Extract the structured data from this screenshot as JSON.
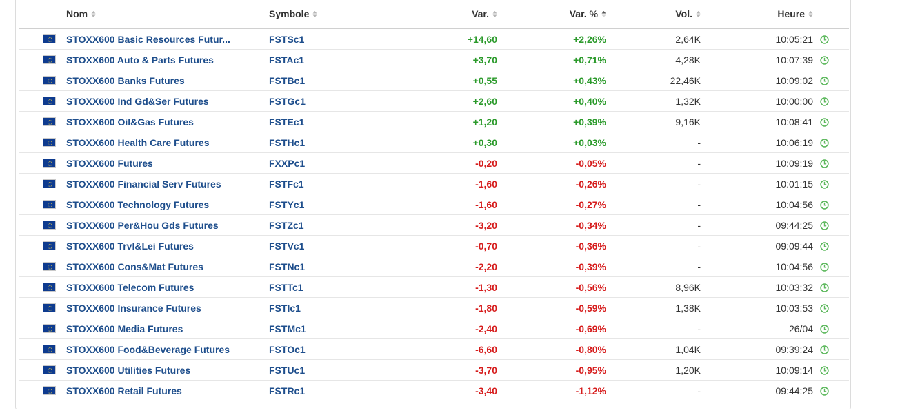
{
  "columns": {
    "name": "Nom",
    "symbol": "Symbole",
    "var": "Var.",
    "var_pct": "Var. %",
    "vol": "Vol.",
    "time": "Heure"
  },
  "colors": {
    "positive": "#2b9a2b",
    "negative": "#d61c1c",
    "link": "#1e4e8c",
    "clock": "#5cb85c"
  },
  "rows": [
    {
      "flag": "eu-flag-icon",
      "name": "STOXX600 Basic Resources Futur...",
      "symbol": "FSTSc1",
      "var": "+14,60",
      "var_pct": "+2,26%",
      "vol": "2,64K",
      "time": "10:05:21",
      "dir": "pos"
    },
    {
      "flag": "eu-flag-icon",
      "name": "STOXX600 Auto & Parts Futures",
      "symbol": "FSTAc1",
      "var": "+3,70",
      "var_pct": "+0,71%",
      "vol": "4,28K",
      "time": "10:07:39",
      "dir": "pos"
    },
    {
      "flag": "eu-flag-icon",
      "name": "STOXX600 Banks Futures",
      "symbol": "FSTBc1",
      "var": "+0,55",
      "var_pct": "+0,43%",
      "vol": "22,46K",
      "time": "10:09:02",
      "dir": "pos"
    },
    {
      "flag": "eu-flag-icon",
      "name": "STOXX600 Ind Gd&Ser Futures",
      "symbol": "FSTGc1",
      "var": "+2,60",
      "var_pct": "+0,40%",
      "vol": "1,32K",
      "time": "10:00:00",
      "dir": "pos"
    },
    {
      "flag": "eu-flag-icon",
      "name": "STOXX600 Oil&Gas Futures",
      "symbol": "FSTEc1",
      "var": "+1,20",
      "var_pct": "+0,39%",
      "vol": "9,16K",
      "time": "10:08:41",
      "dir": "pos"
    },
    {
      "flag": "eu-flag-icon",
      "name": "STOXX600 Health Care Futures",
      "symbol": "FSTHc1",
      "var": "+0,30",
      "var_pct": "+0,03%",
      "vol": "-",
      "time": "10:06:19",
      "dir": "pos"
    },
    {
      "flag": "eu-flag-icon",
      "name": "STOXX600 Futures",
      "symbol": "FXXPc1",
      "var": "-0,20",
      "var_pct": "-0,05%",
      "vol": "-",
      "time": "10:09:19",
      "dir": "neg"
    },
    {
      "flag": "eu-flag-icon",
      "name": "STOXX600 Financial Serv Futures",
      "symbol": "FSTFc1",
      "var": "-1,60",
      "var_pct": "-0,26%",
      "vol": "-",
      "time": "10:01:15",
      "dir": "neg"
    },
    {
      "flag": "eu-flag-icon",
      "name": "STOXX600 Technology Futures",
      "symbol": "FSTYc1",
      "var": "-1,60",
      "var_pct": "-0,27%",
      "vol": "-",
      "time": "10:04:56",
      "dir": "neg"
    },
    {
      "flag": "eu-flag-icon",
      "name": "STOXX600 Per&Hou Gds Futures",
      "symbol": "FSTZc1",
      "var": "-3,20",
      "var_pct": "-0,34%",
      "vol": "-",
      "time": "09:44:25",
      "dir": "neg"
    },
    {
      "flag": "eu-flag-icon",
      "name": "STOXX600 Trvl&Lei Futures",
      "symbol": "FSTVc1",
      "var": "-0,70",
      "var_pct": "-0,36%",
      "vol": "-",
      "time": "09:09:44",
      "dir": "neg"
    },
    {
      "flag": "eu-flag-icon",
      "name": "STOXX600 Cons&Mat Futures",
      "symbol": "FSTNc1",
      "var": "-2,20",
      "var_pct": "-0,39%",
      "vol": "-",
      "time": "10:04:56",
      "dir": "neg"
    },
    {
      "flag": "eu-flag-icon",
      "name": "STOXX600 Telecom Futures",
      "symbol": "FSTTc1",
      "var": "-1,30",
      "var_pct": "-0,56%",
      "vol": "8,96K",
      "time": "10:03:32",
      "dir": "neg"
    },
    {
      "flag": "eu-flag-icon",
      "name": "STOXX600 Insurance Futures",
      "symbol": "FSTIc1",
      "var": "-1,80",
      "var_pct": "-0,59%",
      "vol": "1,38K",
      "time": "10:03:53",
      "dir": "neg"
    },
    {
      "flag": "eu-flag-icon",
      "name": "STOXX600 Media Futures",
      "symbol": "FSTMc1",
      "var": "-2,40",
      "var_pct": "-0,69%",
      "vol": "-",
      "time": "26/04",
      "dir": "neg"
    },
    {
      "flag": "eu-flag-icon",
      "name": "STOXX600 Food&Beverage Futures",
      "symbol": "FSTOc1",
      "var": "-6,60",
      "var_pct": "-0,80%",
      "vol": "1,04K",
      "time": "09:39:24",
      "dir": "neg"
    },
    {
      "flag": "eu-flag-icon",
      "name": "STOXX600 Utilities Futures",
      "symbol": "FSTUc1",
      "var": "-3,70",
      "var_pct": "-0,95%",
      "vol": "1,20K",
      "time": "10:09:14",
      "dir": "neg"
    },
    {
      "flag": "eu-flag-icon",
      "name": "STOXX600 Retail Futures",
      "symbol": "FSTRc1",
      "var": "-3,40",
      "var_pct": "-1,12%",
      "vol": "-",
      "time": "09:44:25",
      "dir": "neg"
    }
  ]
}
